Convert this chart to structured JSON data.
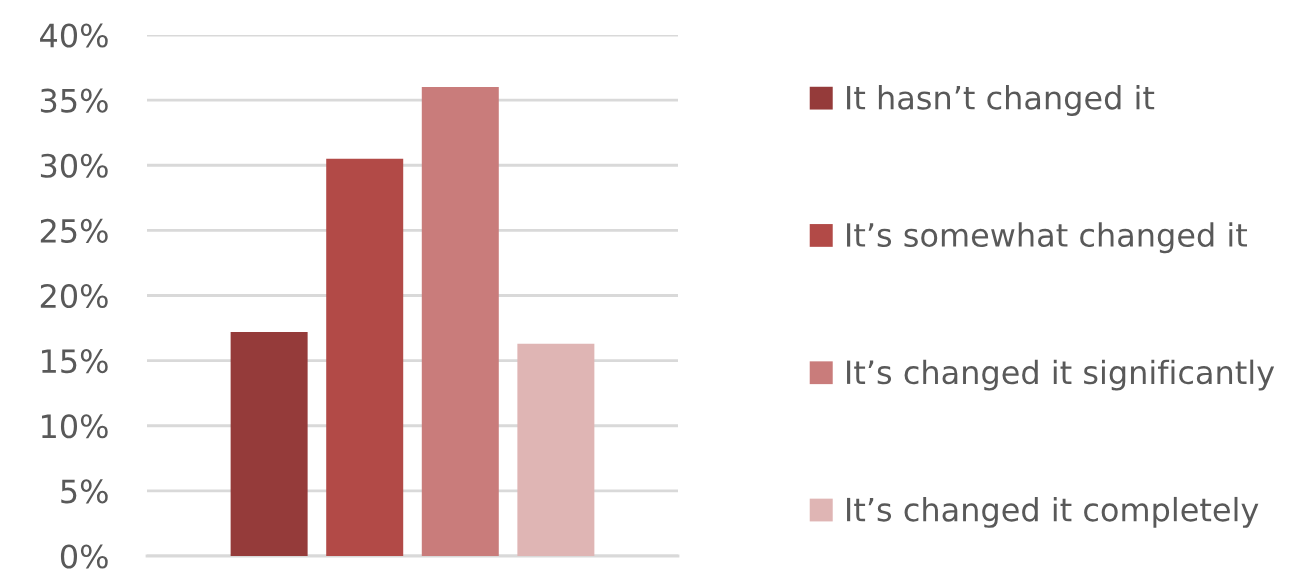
{
  "chart_data": {
    "type": "bar",
    "categories": [
      null
    ],
    "series": [
      {
        "name": "It hasn’t changed it",
        "color": "#953b3a",
        "values": [
          17.2
        ]
      },
      {
        "name": "It’s somewhat changed it",
        "color": "#b24a47",
        "values": [
          30.5
        ]
      },
      {
        "name": "It’s changed it significantly",
        "color": "#c97c7b",
        "values": [
          36.0
        ]
      },
      {
        "name": "It’s changed it completely",
        "color": "#dfb5b4",
        "values": [
          16.3
        ]
      }
    ],
    "ylim": [
      0,
      40
    ],
    "yticks": [
      {
        "value": 0,
        "label": "0%"
      },
      {
        "value": 5,
        "label": "5%"
      },
      {
        "value": 10,
        "label": "10%"
      },
      {
        "value": 15,
        "label": "15%"
      },
      {
        "value": 20,
        "label": "20%"
      },
      {
        "value": 25,
        "label": "25%"
      },
      {
        "value": 30,
        "label": "30%"
      },
      {
        "value": 35,
        "label": "35%"
      },
      {
        "value": 40,
        "label": "40%"
      }
    ],
    "grid": "y",
    "legend": "right",
    "tick_labels": "y"
  }
}
